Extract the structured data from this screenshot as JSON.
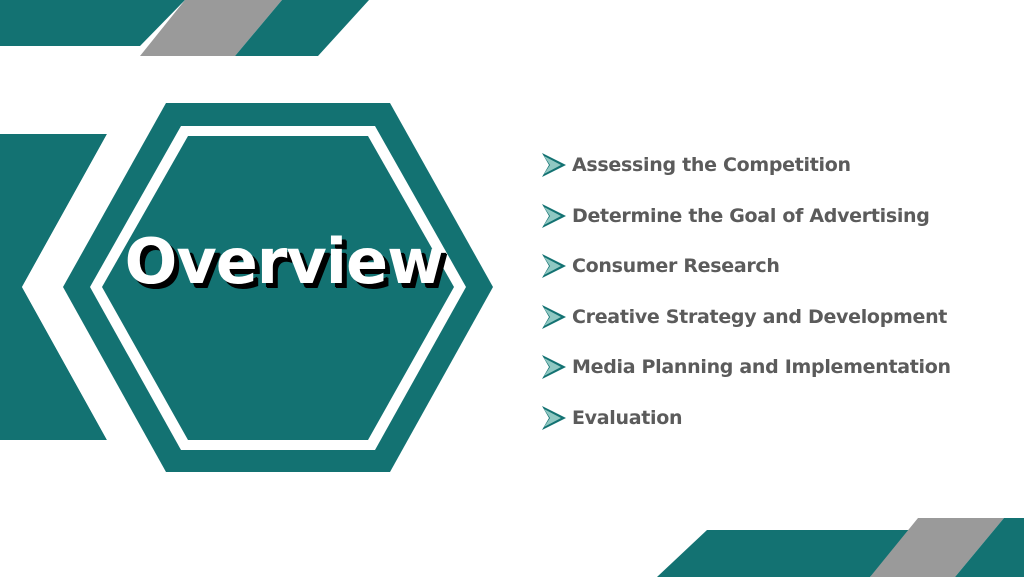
{
  "slide": {
    "title": "Overview",
    "colors": {
      "teal": "#137272",
      "gray": "#9a9a9a",
      "text": "#5b5b5b"
    }
  },
  "agenda": {
    "bullet_icon": "chevron-arrow-icon",
    "items": [
      {
        "label": "Assessing the Competition"
      },
      {
        "label": "Determine the Goal of Advertising"
      },
      {
        "label": "Consumer Research"
      },
      {
        "label": "Creative Strategy and Development"
      },
      {
        "label": "Media Planning and Implementation"
      },
      {
        "label": "Evaluation"
      }
    ]
  }
}
